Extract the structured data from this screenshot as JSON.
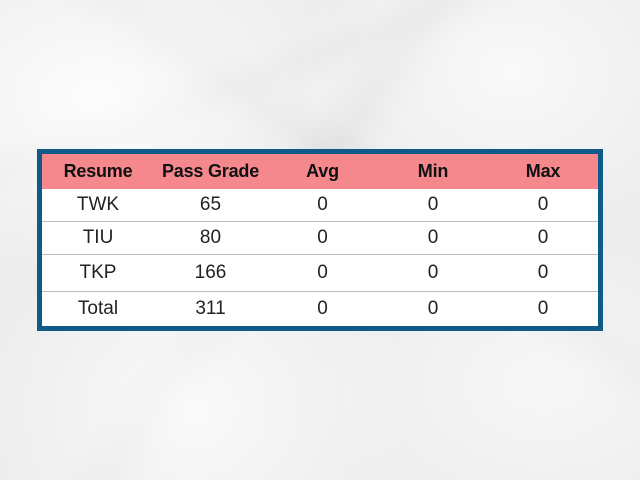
{
  "chart_data": {
    "type": "table",
    "columns": [
      "Resume",
      "Pass Grade",
      "Avg",
      "Min",
      "Max"
    ],
    "rows": [
      [
        "TWK",
        "65",
        "0",
        "0",
        "0"
      ],
      [
        "TIU",
        "80",
        "0",
        "0",
        "0"
      ],
      [
        "TKP",
        "166",
        "0",
        "0",
        "0"
      ],
      [
        "Total",
        "311",
        "0",
        "0",
        "0"
      ]
    ]
  },
  "colors": {
    "border": "#0f5a86",
    "header_background": "#f4888d",
    "page_background": "#ececec"
  }
}
